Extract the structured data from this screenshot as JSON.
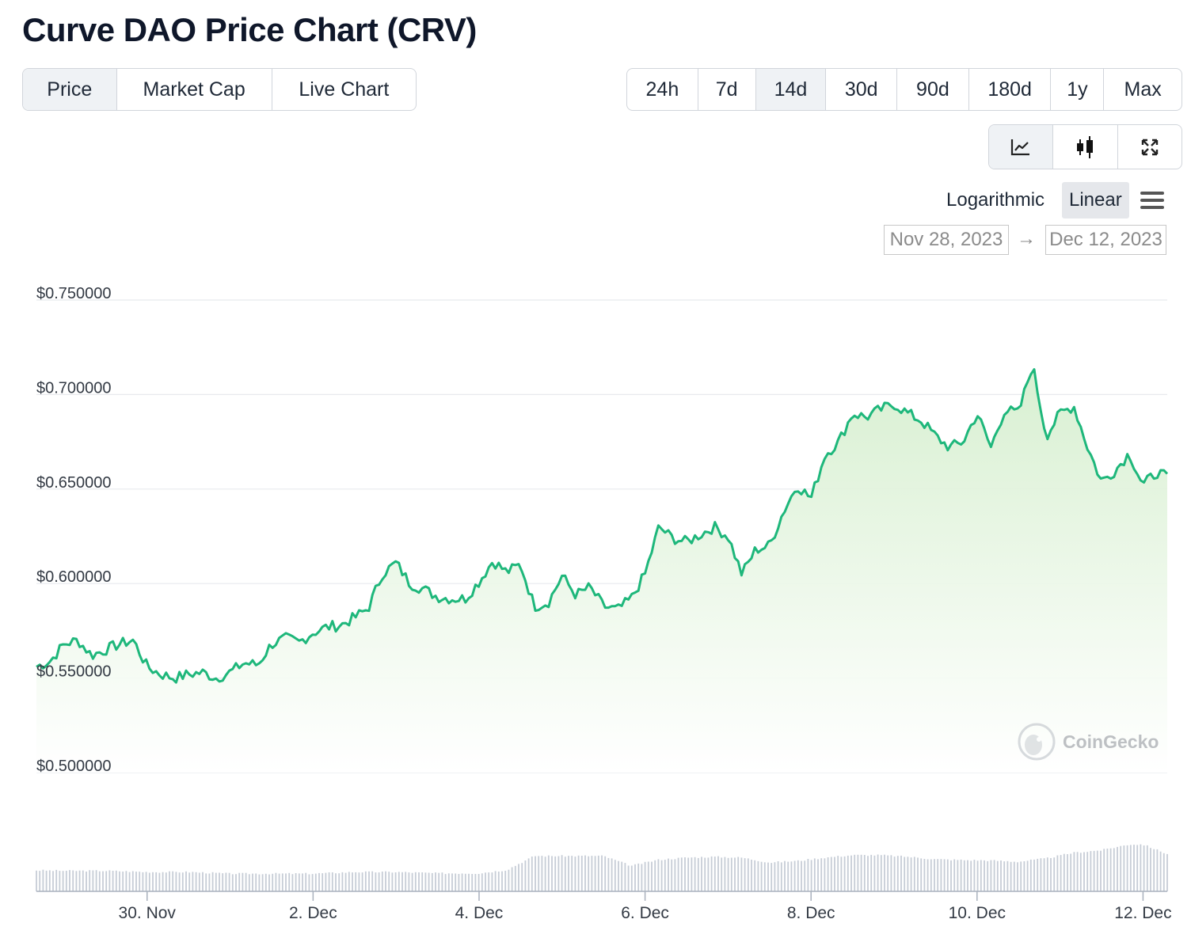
{
  "title": "Curve DAO Price Chart (CRV)",
  "type_tabs": [
    {
      "label": "Price",
      "active": true
    },
    {
      "label": "Market Cap",
      "active": false
    },
    {
      "label": "Live Chart",
      "active": false
    }
  ],
  "range_tabs": [
    {
      "label": "24h",
      "active": false
    },
    {
      "label": "7d",
      "active": false
    },
    {
      "label": "14d",
      "active": true
    },
    {
      "label": "30d",
      "active": false
    },
    {
      "label": "90d",
      "active": false
    },
    {
      "label": "180d",
      "active": false
    },
    {
      "label": "1y",
      "active": false
    },
    {
      "label": "Max",
      "active": false
    }
  ],
  "view_tools": [
    {
      "icon": "line-chart-icon",
      "active": true
    },
    {
      "icon": "candlestick-icon",
      "active": false
    },
    {
      "icon": "fullscreen-icon",
      "active": false
    }
  ],
  "scale": {
    "logarithmic": "Logarithmic",
    "linear": "Linear",
    "selected": "linear",
    "menu_icon": "hamburger-menu-icon"
  },
  "date_range": {
    "from": "Nov 28, 2023",
    "to": "Dec 12, 2023",
    "arrow": "→"
  },
  "watermark": "CoinGecko",
  "colors": {
    "line": "#1eb77b",
    "area_top": "#daf0d4",
    "volume": "#c6ccd6",
    "grid": "#e8eaed"
  },
  "chart_data": {
    "type": "line",
    "ylim": [
      0.5,
      0.75
    ],
    "yticks": [
      "$0.750000",
      "$0.700000",
      "$0.650000",
      "$0.600000",
      "$0.550000",
      "$0.500000"
    ],
    "ytick_values": [
      0.75,
      0.7,
      0.65,
      0.6,
      0.55,
      0.5
    ],
    "x_start": "2023-11-28T16:00",
    "x_end": "2023-12-12T07:00",
    "xticks": [
      "30. Nov",
      "2. Dec",
      "4. Dec",
      "6. Dec",
      "8. Dec",
      "10. Dec",
      "12. Dec"
    ],
    "xtick_dates": [
      "2023-11-30",
      "2023-12-02",
      "2023-12-04",
      "2023-12-06",
      "2023-12-08",
      "2023-12-10",
      "2023-12-12"
    ],
    "grid": true,
    "legend": "none",
    "series": [
      {
        "points": [
          [
            "2023-11-28T16:00",
            0.556
          ],
          [
            "2023-11-28T20:00",
            0.559
          ],
          [
            "2023-11-29T00:00",
            0.568
          ],
          [
            "2023-11-29T04:00",
            0.57
          ],
          [
            "2023-11-29T08:00",
            0.562
          ],
          [
            "2023-11-29T12:00",
            0.565
          ],
          [
            "2023-11-29T16:00",
            0.568
          ],
          [
            "2023-11-29T20:00",
            0.57
          ],
          [
            "2023-11-30T00:00",
            0.556
          ],
          [
            "2023-11-30T04:00",
            0.552
          ],
          [
            "2023-11-30T08:00",
            0.55
          ],
          [
            "2023-11-30T12:00",
            0.552
          ],
          [
            "2023-11-30T16:00",
            0.553
          ],
          [
            "2023-11-30T20:00",
            0.55
          ],
          [
            "2023-12-01T00:00",
            0.553
          ],
          [
            "2023-12-01T04:00",
            0.558
          ],
          [
            "2023-12-01T08:00",
            0.557
          ],
          [
            "2023-12-01T12:00",
            0.568
          ],
          [
            "2023-12-01T16:00",
            0.571
          ],
          [
            "2023-12-01T20:00",
            0.569
          ],
          [
            "2023-12-02T00:00",
            0.574
          ],
          [
            "2023-12-02T04:00",
            0.577
          ],
          [
            "2023-12-02T08:00",
            0.578
          ],
          [
            "2023-12-02T12:00",
            0.582
          ],
          [
            "2023-12-02T16:00",
            0.587
          ],
          [
            "2023-12-02T20:00",
            0.605
          ],
          [
            "2023-12-03T00:00",
            0.611
          ],
          [
            "2023-12-03T04:00",
            0.6
          ],
          [
            "2023-12-03T08:00",
            0.597
          ],
          [
            "2023-12-03T12:00",
            0.593
          ],
          [
            "2023-12-03T16:00",
            0.592
          ],
          [
            "2023-12-03T20:00",
            0.592
          ],
          [
            "2023-12-04T00:00",
            0.601
          ],
          [
            "2023-12-04T04:00",
            0.612
          ],
          [
            "2023-12-04T08:00",
            0.606
          ],
          [
            "2023-12-04T12:00",
            0.61
          ],
          [
            "2023-12-04T16:00",
            0.588
          ],
          [
            "2023-12-04T20:00",
            0.59
          ],
          [
            "2023-12-05T00:00",
            0.604
          ],
          [
            "2023-12-05T04:00",
            0.594
          ],
          [
            "2023-12-05T08:00",
            0.598
          ],
          [
            "2023-12-05T12:00",
            0.588
          ],
          [
            "2023-12-05T16:00",
            0.586
          ],
          [
            "2023-12-05T20:00",
            0.592
          ],
          [
            "2023-12-06T00:00",
            0.605
          ],
          [
            "2023-12-06T04:00",
            0.63
          ],
          [
            "2023-12-06T08:00",
            0.624
          ],
          [
            "2023-12-06T12:00",
            0.622
          ],
          [
            "2023-12-06T16:00",
            0.626
          ],
          [
            "2023-12-06T20:00",
            0.63
          ],
          [
            "2023-12-07T00:00",
            0.625
          ],
          [
            "2023-12-07T04:00",
            0.605
          ],
          [
            "2023-12-07T08:00",
            0.618
          ],
          [
            "2023-12-07T12:00",
            0.62
          ],
          [
            "2023-12-07T16:00",
            0.638
          ],
          [
            "2023-12-07T20:00",
            0.652
          ],
          [
            "2023-12-08T00:00",
            0.645
          ],
          [
            "2023-12-08T04:00",
            0.668
          ],
          [
            "2023-12-08T08:00",
            0.675
          ],
          [
            "2023-12-08T12:00",
            0.69
          ],
          [
            "2023-12-08T16:00",
            0.688
          ],
          [
            "2023-12-08T20:00",
            0.692
          ],
          [
            "2023-12-09T00:00",
            0.695
          ],
          [
            "2023-12-09T04:00",
            0.69
          ],
          [
            "2023-12-09T08:00",
            0.686
          ],
          [
            "2023-12-09T12:00",
            0.678
          ],
          [
            "2023-12-09T16:00",
            0.672
          ],
          [
            "2023-12-09T20:00",
            0.675
          ],
          [
            "2023-12-10T00:00",
            0.69
          ],
          [
            "2023-12-10T04:00",
            0.672
          ],
          [
            "2023-12-10T08:00",
            0.692
          ],
          [
            "2023-12-10T12:00",
            0.69
          ],
          [
            "2023-12-10T16:00",
            0.716
          ],
          [
            "2023-12-10T20:00",
            0.678
          ],
          [
            "2023-12-11T00:00",
            0.69
          ],
          [
            "2023-12-11T04:00",
            0.694
          ],
          [
            "2023-12-11T08:00",
            0.672
          ],
          [
            "2023-12-11T12:00",
            0.654
          ],
          [
            "2023-12-11T16:00",
            0.66
          ],
          [
            "2023-12-11T20:00",
            0.669
          ],
          [
            "2023-12-12T00:00",
            0.652
          ],
          [
            "2023-12-12T04:00",
            0.659
          ],
          [
            "2023-12-12T07:00",
            0.656
          ]
        ]
      }
    ],
    "volume": {
      "points": [
        [
          "2023-11-28T16:00",
          0.51
        ],
        [
          "2023-11-29T00:00",
          0.5
        ],
        [
          "2023-11-29T12:00",
          0.5
        ],
        [
          "2023-11-30T00:00",
          0.47
        ],
        [
          "2023-11-30T12:00",
          0.47
        ],
        [
          "2023-12-01T00:00",
          0.43
        ],
        [
          "2023-12-01T12:00",
          0.43
        ],
        [
          "2023-12-02T00:00",
          0.43
        ],
        [
          "2023-12-02T12:00",
          0.47
        ],
        [
          "2023-12-03T00:00",
          0.47
        ],
        [
          "2023-12-03T12:00",
          0.44
        ],
        [
          "2023-12-04T00:00",
          0.44
        ],
        [
          "2023-12-04T08:00",
          0.52
        ],
        [
          "2023-12-04T16:00",
          0.86
        ],
        [
          "2023-12-05T00:00",
          0.86
        ],
        [
          "2023-12-05T12:00",
          0.86
        ],
        [
          "2023-12-05T20:00",
          0.62
        ],
        [
          "2023-12-06T04:00",
          0.77
        ],
        [
          "2023-12-06T12:00",
          0.82
        ],
        [
          "2023-12-06T20:00",
          0.84
        ],
        [
          "2023-12-07T04:00",
          0.82
        ],
        [
          "2023-12-07T12:00",
          0.7
        ],
        [
          "2023-12-07T20:00",
          0.74
        ],
        [
          "2023-12-08T04:00",
          0.82
        ],
        [
          "2023-12-08T12:00",
          0.88
        ],
        [
          "2023-12-08T20:00",
          0.88
        ],
        [
          "2023-12-09T04:00",
          0.84
        ],
        [
          "2023-12-09T12:00",
          0.78
        ],
        [
          "2023-12-09T20:00",
          0.76
        ],
        [
          "2023-12-10T04:00",
          0.75
        ],
        [
          "2023-12-10T12:00",
          0.72
        ],
        [
          "2023-12-10T20:00",
          0.8
        ],
        [
          "2023-12-11T04:00",
          0.94
        ],
        [
          "2023-12-11T12:00",
          1.0
        ],
        [
          "2023-12-11T20:00",
          1.14
        ],
        [
          "2023-12-12T00:00",
          1.14
        ],
        [
          "2023-12-12T07:00",
          0.91
        ]
      ]
    }
  }
}
